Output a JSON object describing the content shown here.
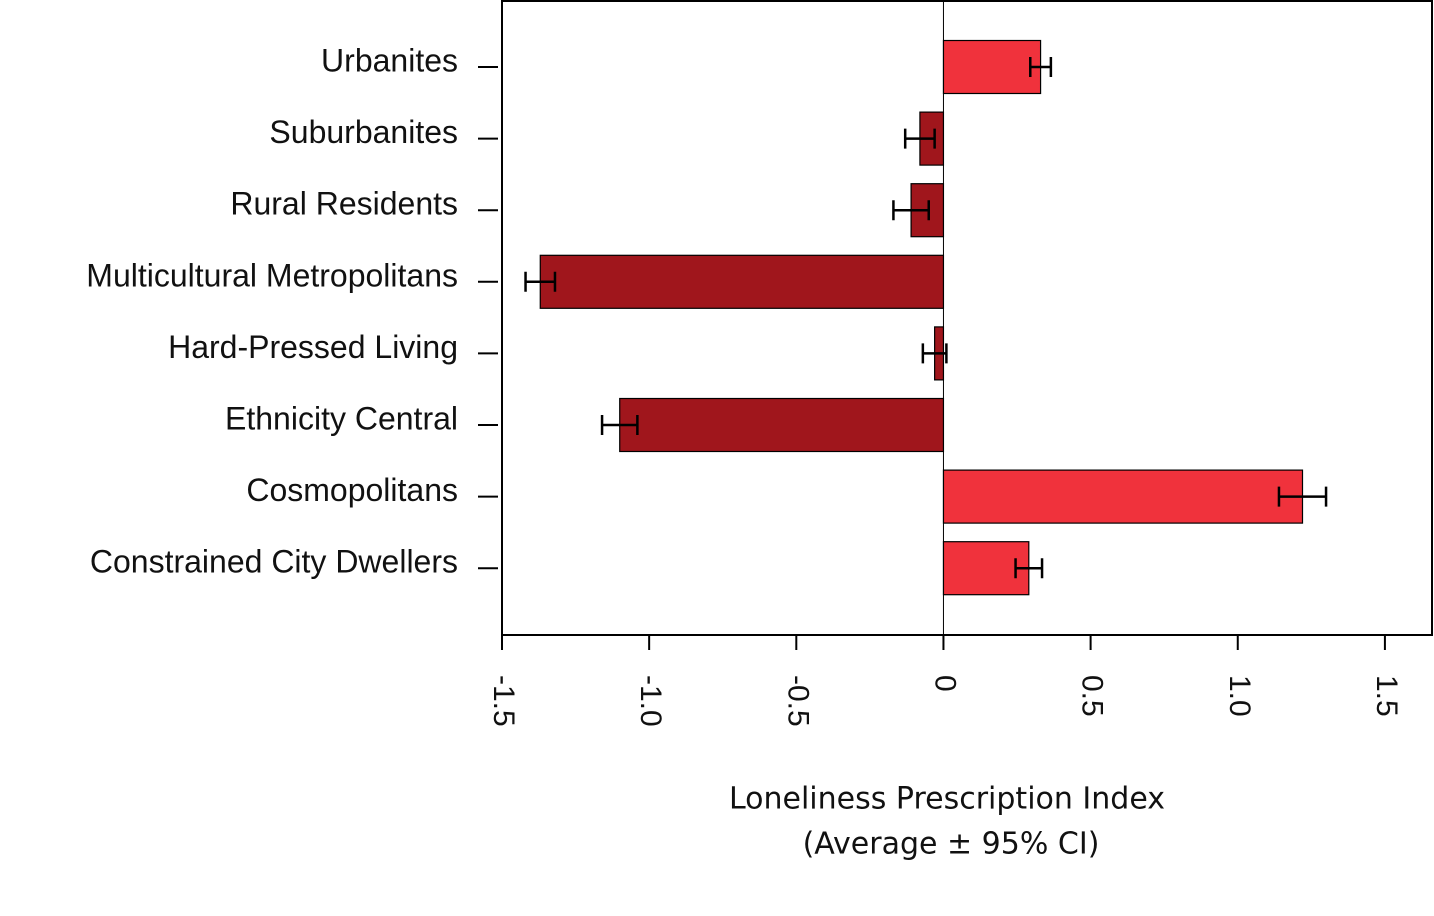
{
  "chart_data": {
    "type": "hbar_error",
    "xlabel": [
      "Loneliness Prescription Index",
      "(Average ± 95% CI)"
    ],
    "categories": [
      "Urbanites",
      "Suburbanites",
      "Rural Residents",
      "Multicultural Metropolitans",
      "Hard-Pressed Living",
      "Ethnicity Central",
      "Cosmopolitans",
      "Constrained City Dwellers"
    ],
    "values": [
      0.33,
      -0.08,
      -0.11,
      -1.37,
      -0.03,
      -1.1,
      1.22,
      0.29
    ],
    "errors": [
      0.035,
      0.05,
      0.06,
      0.05,
      0.04,
      0.06,
      0.08,
      0.045
    ],
    "colors": [
      "#f0323c",
      "#a0161c",
      "#a0161c",
      "#a0161c",
      "#a0161c",
      "#a0161c",
      "#f0323c",
      "#f0323c"
    ],
    "xlim": [
      -1.5,
      1.66
    ],
    "xticks": [
      -1.5,
      {
        "value": -1,
        "label": "-1.0"
      },
      -0.5,
      0,
      0.5,
      {
        "value": 1,
        "label": "1.0"
      },
      1.5
    ]
  }
}
